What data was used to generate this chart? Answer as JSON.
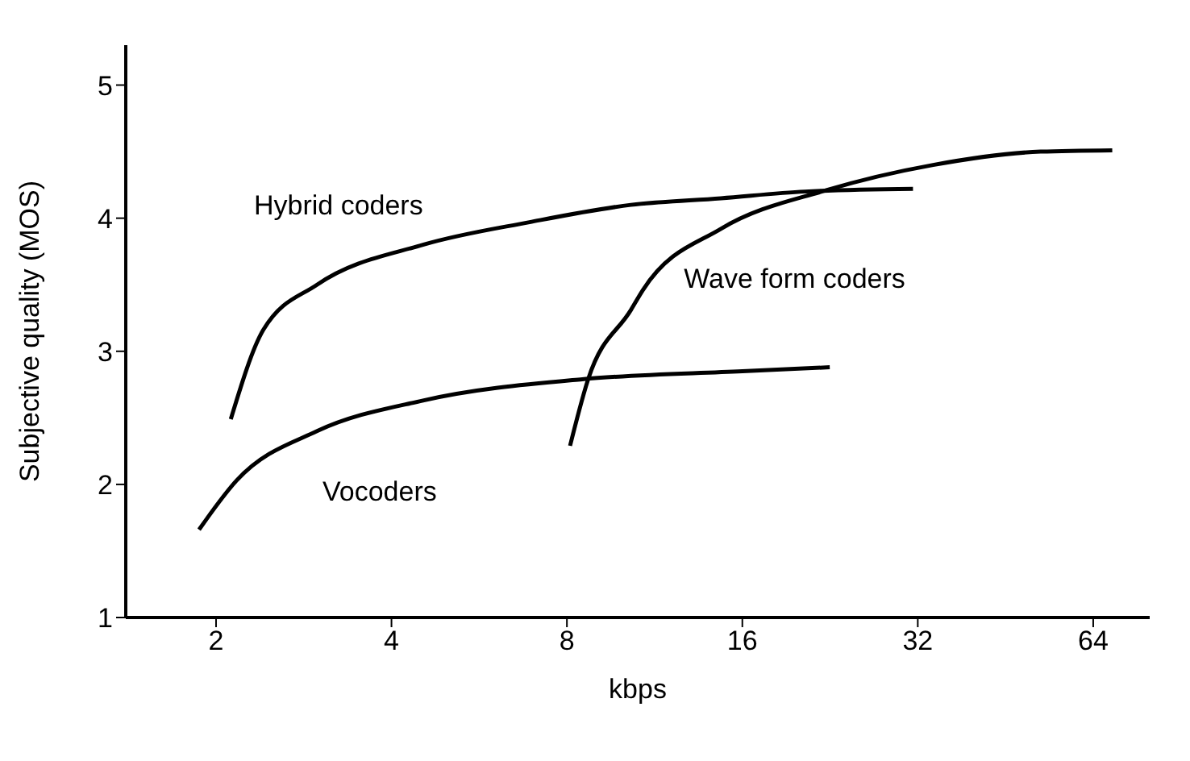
{
  "chart_data": {
    "type": "line",
    "xlabel": "kbps",
    "ylabel": "Subjective quality (MOS)",
    "log": "x",
    "xlim": [
      1.4,
      80
    ],
    "xticks": [
      2,
      4,
      8,
      16,
      32,
      64
    ],
    "ylim": [
      1,
      5.3
    ],
    "yticks": [
      1,
      2,
      3,
      4,
      5
    ],
    "grid": false,
    "legend": false,
    "marker": "none",
    "line_style": "solid",
    "series": [
      {
        "name": "Hybrid coders",
        "color": "#000000",
        "x": [
          2.12,
          2.41,
          2.98,
          4.53,
          6.9,
          10.3,
          14.7,
          20.5,
          31.4
        ],
        "values": [
          2.49,
          3.16,
          3.5,
          3.8,
          3.97,
          4.1,
          4.15,
          4.2,
          4.22
        ]
      },
      {
        "name": "Wave form coders",
        "color": "#000000",
        "x": [
          8.1,
          8.7,
          10.3,
          10.8,
          14.7,
          22.3,
          34,
          52,
          69
        ],
        "values": [
          2.29,
          2.79,
          3.31,
          3.46,
          3.92,
          4.21,
          4.4,
          4.5,
          4.51
        ]
      },
      {
        "name": "Vocoders",
        "color": "#000000",
        "x": [
          1.87,
          2.17,
          2.98,
          4.53,
          8.5,
          16,
          22.6
        ],
        "values": [
          1.66,
          2.03,
          2.4,
          2.63,
          2.79,
          2.85,
          2.88
        ]
      }
    ]
  }
}
